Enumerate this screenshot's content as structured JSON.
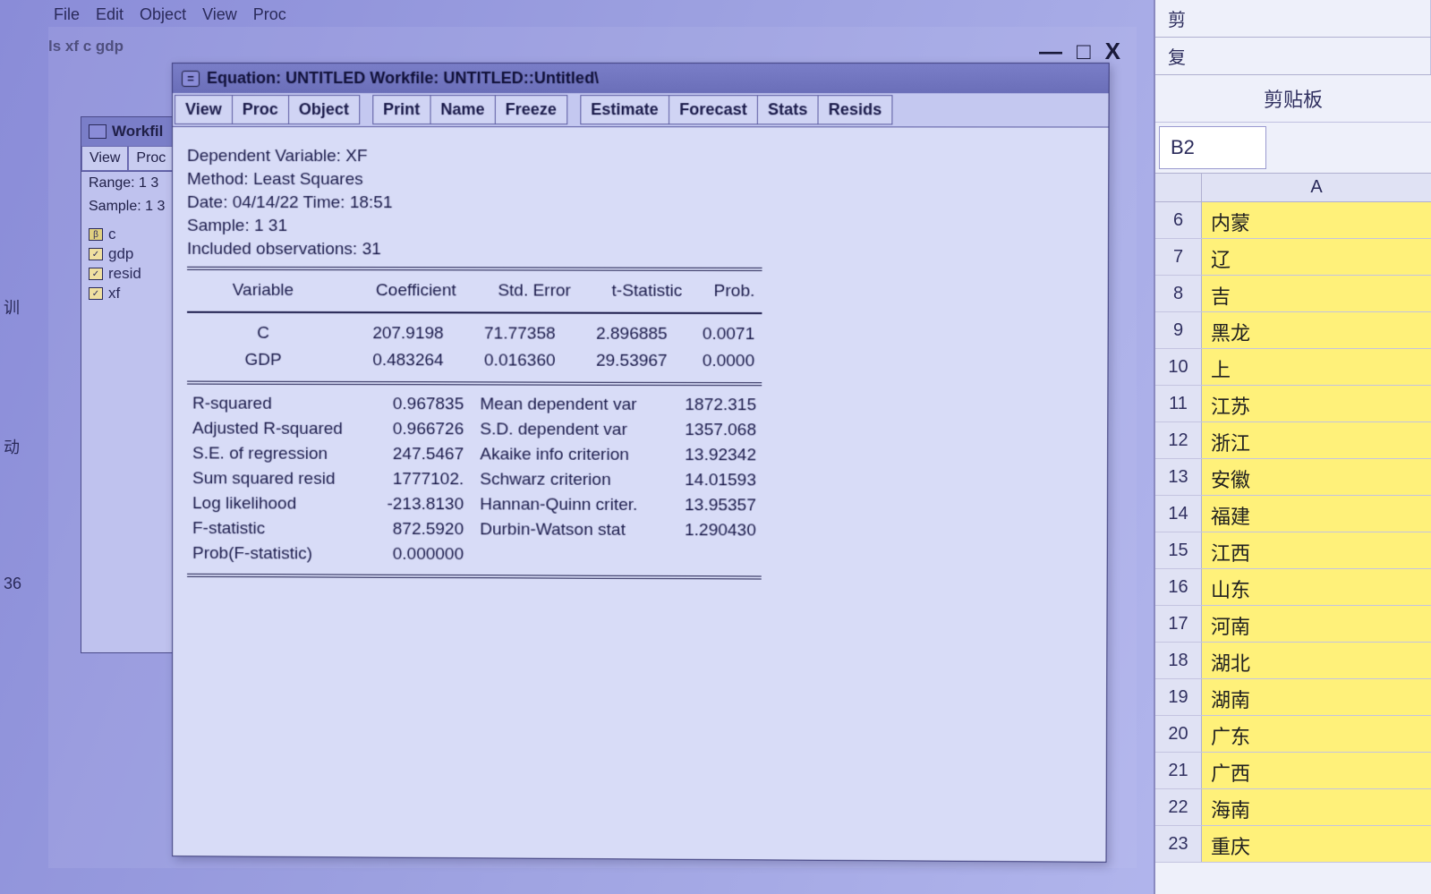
{
  "colors": {
    "bg_gradient_from": "#8a8cd8",
    "bg_gradient_to": "#b8bcf0",
    "window_bg": "#d8dcf7",
    "titlebar": "#7a7ec8",
    "text": "#1a1a4a",
    "excel_highlight": "#fff17a"
  },
  "topmenu": [
    "File",
    "Edit",
    "Object",
    "View",
    "Proc"
  ],
  "command_text": "ls xf c gdp",
  "mainwin_controls": {
    "min": "—",
    "max": "□",
    "close": "X"
  },
  "workfile": {
    "title": "Workfil",
    "toolbar": [
      "View",
      "Proc"
    ],
    "range": "Range:  1 3",
    "sample": "Sample: 1 3",
    "objects": [
      {
        "icon": "β",
        "name": "c",
        "checked": false
      },
      {
        "icon": "✓",
        "name": "gdp",
        "checked": true
      },
      {
        "icon": "✓",
        "name": "resid",
        "checked": true
      },
      {
        "icon": "✓",
        "name": "xf",
        "checked": true
      }
    ]
  },
  "equation": {
    "title": "Equation: UNTITLED   Workfile: UNTITLED::Untitled\\",
    "toolbar_groups": [
      [
        "View",
        "Proc",
        "Object"
      ],
      [
        "Print",
        "Name",
        "Freeze"
      ],
      [
        "Estimate",
        "Forecast",
        "Stats",
        "Resids"
      ]
    ],
    "header": {
      "dep_var": "Dependent Variable: XF",
      "method": "Method: Least Squares",
      "date": "Date: 04/14/22   Time: 18:51",
      "sample": "Sample: 1 31",
      "included": "Included observations: 31"
    },
    "col_headers": [
      "Variable",
      "Coefficient",
      "Std. Error",
      "t-Statistic",
      "Prob."
    ],
    "coef_rows": [
      {
        "var": "C",
        "coef": "207.9198",
        "se": "71.77358",
        "t": "2.896885",
        "p": "0.0071"
      },
      {
        "var": "GDP",
        "coef": "0.483264",
        "se": "0.016360",
        "t": "29.53967",
        "p": "0.0000"
      }
    ],
    "stats": [
      {
        "l": "R-squared",
        "v": "0.967835",
        "l2": "Mean dependent var",
        "v2": "1872.315"
      },
      {
        "l": "Adjusted R-squared",
        "v": "0.966726",
        "l2": "S.D. dependent var",
        "v2": "1357.068"
      },
      {
        "l": "S.E. of regression",
        "v": "247.5467",
        "l2": "Akaike info criterion",
        "v2": "13.92342"
      },
      {
        "l": "Sum squared resid",
        "v": "1777102.",
        "l2": "Schwarz criterion",
        "v2": "14.01593"
      },
      {
        "l": "Log likelihood",
        "v": "-213.8130",
        "l2": "Hannan-Quinn criter.",
        "v2": "13.95357"
      },
      {
        "l": "F-statistic",
        "v": "872.5920",
        "l2": "Durbin-Watson stat",
        "v2": "1.290430"
      },
      {
        "l": "Prob(F-statistic)",
        "v": "0.000000",
        "l2": "",
        "v2": ""
      }
    ]
  },
  "excel": {
    "top_items": [
      "剪",
      "复"
    ],
    "section": "剪贴板",
    "namebox": "B2",
    "col_header": "A",
    "rows": [
      {
        "n": "6",
        "v": "内蒙"
      },
      {
        "n": "7",
        "v": "辽"
      },
      {
        "n": "8",
        "v": "吉"
      },
      {
        "n": "9",
        "v": "黑龙"
      },
      {
        "n": "10",
        "v": "上"
      },
      {
        "n": "11",
        "v": "江苏"
      },
      {
        "n": "12",
        "v": "浙江"
      },
      {
        "n": "13",
        "v": "安徽"
      },
      {
        "n": "14",
        "v": "福建"
      },
      {
        "n": "15",
        "v": "江西"
      },
      {
        "n": "16",
        "v": "山东"
      },
      {
        "n": "17",
        "v": "河南"
      },
      {
        "n": "18",
        "v": "湖北"
      },
      {
        "n": "19",
        "v": "湖南"
      },
      {
        "n": "20",
        "v": "广东"
      },
      {
        "n": "21",
        "v": "广西"
      },
      {
        "n": "22",
        "v": "海南"
      },
      {
        "n": "23",
        "v": "重庆"
      }
    ]
  },
  "leftedge": [
    "训",
    "动",
    "36"
  ]
}
